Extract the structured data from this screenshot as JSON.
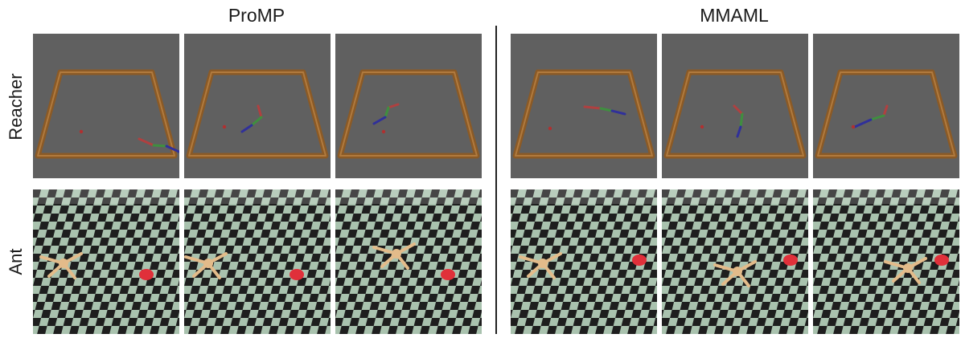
{
  "groups": [
    {
      "title": "ProMP"
    },
    {
      "title": "MMAML"
    }
  ],
  "rows": [
    {
      "label": "Reacher"
    },
    {
      "label": "Ant"
    }
  ],
  "colors": {
    "reacher_bg": "#606060",
    "frame": "#8b5a26",
    "frame_highlight": "#b07a3e",
    "goal": "#b03030",
    "link_red": "#b04040",
    "link_green": "#3f8f3f",
    "link_blue": "#30309a",
    "floor_light": "#a9c2ae",
    "floor_dark": "#1e1e1e",
    "ant_body": "#e3bb8a",
    "ant_goal": "#e0303a"
  },
  "panels": [
    {
      "group": "ProMP",
      "row": "Reacher",
      "variant": 0
    },
    {
      "group": "ProMP",
      "row": "Reacher",
      "variant": 1
    },
    {
      "group": "ProMP",
      "row": "Reacher",
      "variant": 2
    },
    {
      "group": "MMAML",
      "row": "Reacher",
      "variant": 3
    },
    {
      "group": "MMAML",
      "row": "Reacher",
      "variant": 4
    },
    {
      "group": "MMAML",
      "row": "Reacher",
      "variant": 5
    },
    {
      "group": "ProMP",
      "row": "Ant",
      "variant": 0
    },
    {
      "group": "ProMP",
      "row": "Ant",
      "variant": 1
    },
    {
      "group": "ProMP",
      "row": "Ant",
      "variant": 2
    },
    {
      "group": "MMAML",
      "row": "Ant",
      "variant": 3
    },
    {
      "group": "MMAML",
      "row": "Ant",
      "variant": 4
    },
    {
      "group": "MMAML",
      "row": "Ant",
      "variant": 5
    }
  ]
}
